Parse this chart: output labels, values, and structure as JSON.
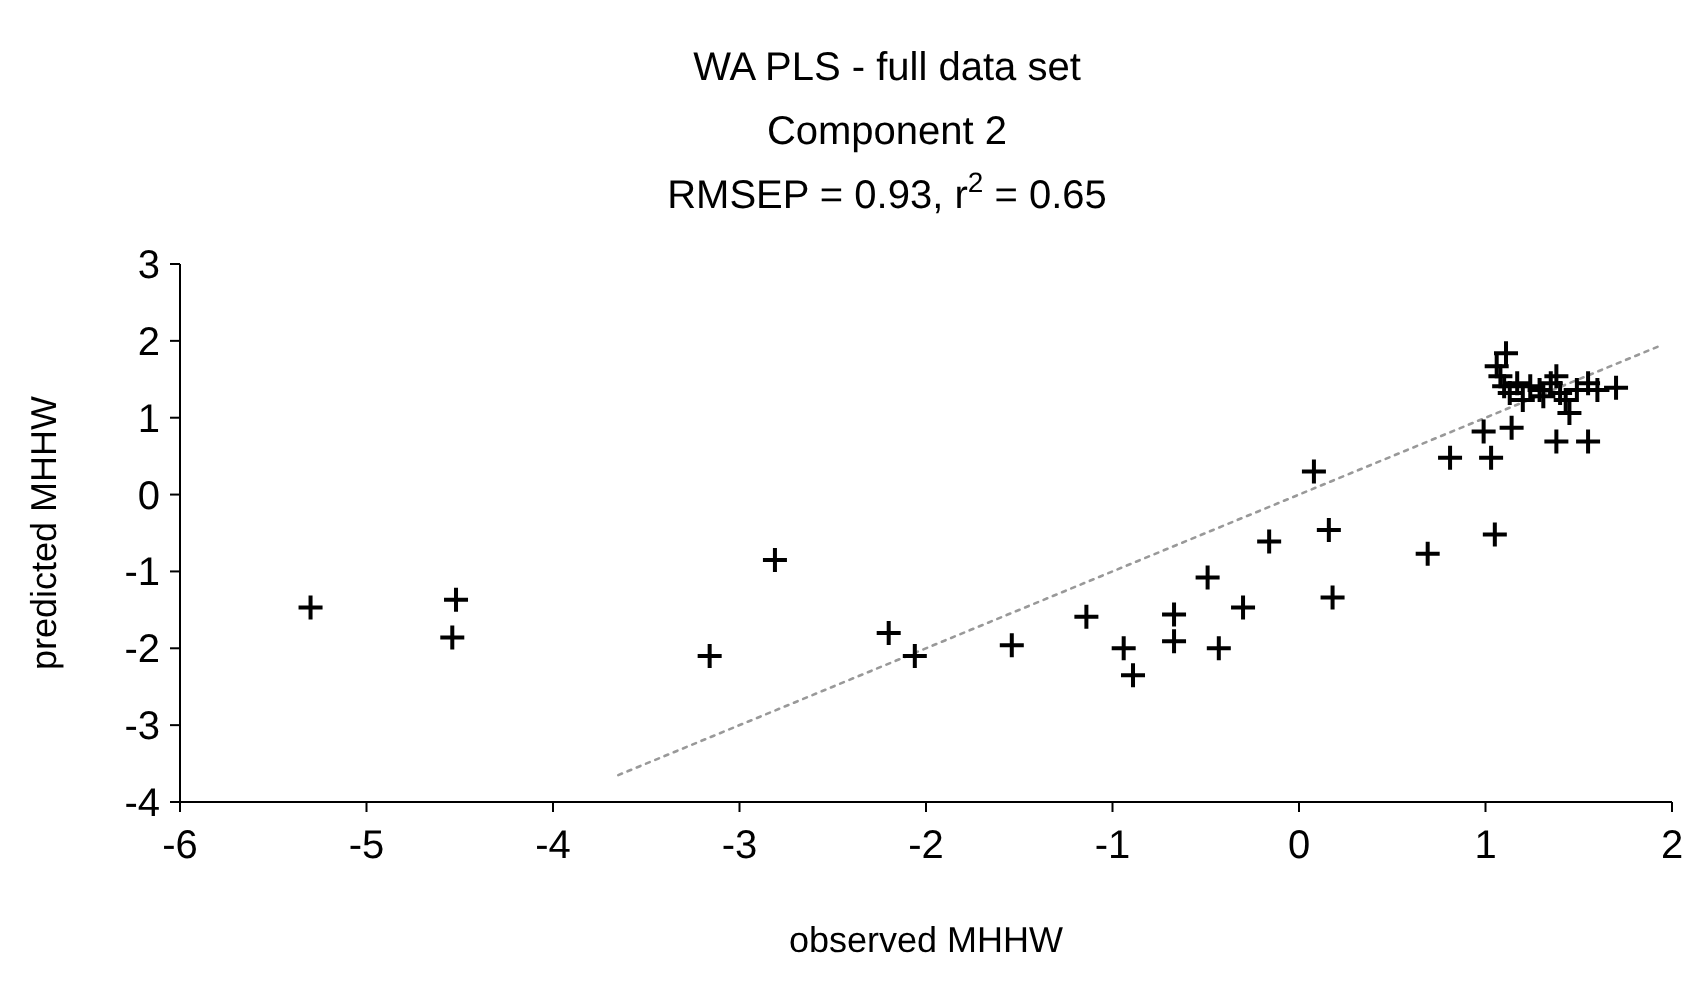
{
  "chart_data": {
    "type": "scatter",
    "title": "WA PLS - full data set",
    "subtitle": "Component 2\nRMSEP = 0.93, r$^{2}$ = 0.65",
    "xlabel": "observed MHHW",
    "ylabel": "predicted MHHW",
    "xlim": [
      -6,
      2
    ],
    "xticks": [
      -6,
      -5,
      -4,
      -3,
      -2,
      -1,
      0,
      1,
      2
    ],
    "ylim": [
      -4,
      3
    ],
    "yticks": [
      -4,
      -3,
      -2,
      -1,
      0,
      1,
      2,
      3
    ],
    "grid": false,
    "series": [
      {
        "color": "#000000",
        "marker": "cross",
        "x": [
          -5.3,
          -4.52,
          -4.54,
          -3.16,
          -2.81,
          -2.2,
          -2.06,
          -1.54,
          -1.14,
          -0.94,
          -0.89,
          -0.67,
          -0.67,
          -0.49,
          -0.43,
          -0.3,
          -0.16,
          0.08,
          0.16,
          0.18,
          0.69,
          0.81,
          0.99,
          1.03,
          1.05,
          1.14,
          1.38,
          1.55,
          1.7,
          1.11,
          1.06,
          1.08,
          1.1,
          1.13,
          1.17,
          1.2,
          1.24,
          1.29,
          1.35,
          1.38,
          1.4,
          1.43,
          1.45,
          1.49,
          1.55,
          1.6,
          1.31
        ],
        "values": [
          -1.47,
          -1.37,
          -1.86,
          -2.1,
          -0.85,
          -1.8,
          -2.1,
          -1.96,
          -1.59,
          -2.0,
          -2.35,
          -1.56,
          -1.91,
          -1.08,
          -2.0,
          -1.47,
          -0.61,
          0.3,
          -0.46,
          -1.34,
          -0.77,
          0.48,
          0.82,
          0.48,
          -0.52,
          0.87,
          0.69,
          0.69,
          1.39,
          1.84,
          1.67,
          1.54,
          1.41,
          1.32,
          1.45,
          1.23,
          1.41,
          1.36,
          1.45,
          1.54,
          1.32,
          1.23,
          1.06,
          1.36,
          1.45,
          1.36,
          1.28
        ]
      },
      {
        "type": "line",
        "color": "#999999",
        "line_style": "dotted",
        "x": [
          -3.65,
          1.95
        ],
        "values": [
          -3.65,
          1.95
        ]
      }
    ]
  }
}
